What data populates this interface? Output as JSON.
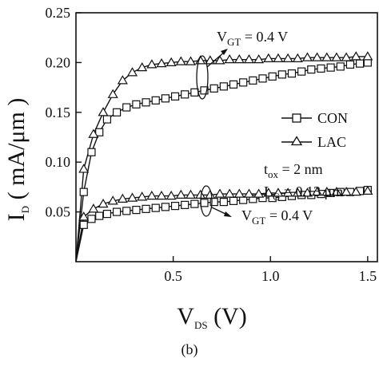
{
  "chart_data": {
    "type": "line",
    "caption": "(b)",
    "x_label": {
      "main": "V",
      "sub": "DS",
      "suffix": " (V)"
    },
    "y_label": {
      "main": "I",
      "sub": "D",
      "suffix": " ( mA/μm )"
    },
    "x_range": [
      0,
      1.55
    ],
    "y_range": [
      0,
      0.25
    ],
    "x_ticks": [
      0.5,
      1.0,
      1.5
    ],
    "x_tick_labels": [
      "0.5",
      "1.0",
      "1.5"
    ],
    "y_ticks": [
      0.05,
      0.1,
      0.15,
      0.2,
      0.25
    ],
    "y_tick_labels": [
      "0.05",
      "0.10",
      "0.15",
      "0.20",
      "0.25"
    ],
    "grid": false,
    "legend_position": "right",
    "series": [
      {
        "name": "CON",
        "marker": "square",
        "curves": [
          {
            "x": [
              0,
              0.04,
              0.08,
              0.12,
              0.16,
              0.21,
              0.26,
              0.31,
              0.36,
              0.41,
              0.46,
              0.51,
              0.56,
              0.61,
              0.66,
              0.71,
              0.76,
              0.81,
              0.86,
              0.91,
              0.96,
              1.01,
              1.06,
              1.11,
              1.16,
              1.21,
              1.26,
              1.31,
              1.36,
              1.41,
              1.46,
              1.5
            ],
            "y": [
              0,
              0.07,
              0.11,
              0.13,
              0.143,
              0.15,
              0.155,
              0.158,
              0.16,
              0.162,
              0.164,
              0.166,
              0.168,
              0.17,
              0.172,
              0.174,
              0.176,
              0.178,
              0.18,
              0.182,
              0.184,
              0.186,
              0.188,
              0.189,
              0.191,
              0.193,
              0.194,
              0.195,
              0.196,
              0.198,
              0.199,
              0.2
            ]
          },
          {
            "x": [
              0,
              0.04,
              0.08,
              0.12,
              0.16,
              0.21,
              0.26,
              0.31,
              0.36,
              0.41,
              0.46,
              0.51,
              0.56,
              0.61,
              0.66,
              0.71,
              0.76,
              0.81,
              0.86,
              0.91,
              0.96,
              1.01,
              1.06,
              1.11,
              1.16,
              1.21,
              1.26,
              1.31,
              1.36,
              1.41,
              1.46,
              1.5
            ],
            "y": [
              0,
              0.037,
              0.043,
              0.046,
              0.048,
              0.05,
              0.051,
              0.052,
              0.053,
              0.054,
              0.055,
              0.056,
              0.057,
              0.058,
              0.059,
              0.06,
              0.06,
              0.061,
              0.062,
              0.063,
              0.064,
              0.064,
              0.065,
              0.066,
              0.067,
              0.067,
              0.068,
              0.069,
              0.07,
              0.07,
              0.071,
              0.072
            ]
          }
        ]
      },
      {
        "name": "LAC",
        "marker": "triangle",
        "curves": [
          {
            "x": [
              0,
              0.04,
              0.09,
              0.14,
              0.19,
              0.24,
              0.29,
              0.34,
              0.39,
              0.44,
              0.49,
              0.54,
              0.59,
              0.64,
              0.69,
              0.74,
              0.79,
              0.84,
              0.89,
              0.94,
              0.99,
              1.04,
              1.09,
              1.14,
              1.19,
              1.24,
              1.29,
              1.34,
              1.39,
              1.44,
              1.5
            ],
            "y": [
              0,
              0.093,
              0.128,
              0.15,
              0.168,
              0.182,
              0.19,
              0.195,
              0.198,
              0.199,
              0.2,
              0.201,
              0.201,
              0.202,
              0.202,
              0.202,
              0.203,
              0.203,
              0.203,
              0.203,
              0.204,
              0.204,
              0.204,
              0.204,
              0.205,
              0.205,
              0.205,
              0.205,
              0.205,
              0.206,
              0.206
            ]
          },
          {
            "x": [
              0,
              0.04,
              0.09,
              0.14,
              0.19,
              0.24,
              0.29,
              0.34,
              0.39,
              0.44,
              0.49,
              0.54,
              0.59,
              0.64,
              0.69,
              0.74,
              0.79,
              0.84,
              0.89,
              0.94,
              0.99,
              1.04,
              1.09,
              1.14,
              1.19,
              1.24,
              1.29,
              1.34,
              1.39,
              1.44,
              1.5
            ],
            "y": [
              0,
              0.045,
              0.053,
              0.058,
              0.061,
              0.063,
              0.064,
              0.065,
              0.066,
              0.066,
              0.066,
              0.067,
              0.067,
              0.067,
              0.067,
              0.068,
              0.068,
              0.068,
              0.068,
              0.068,
              0.069,
              0.069,
              0.069,
              0.069,
              0.069,
              0.07,
              0.07,
              0.07,
              0.07,
              0.07,
              0.071
            ]
          }
        ]
      }
    ],
    "annotations": {
      "vgt_upper": {
        "main": "V",
        "sub": "GT",
        "rest": " = 0.4 V"
      },
      "vgt_lower": {
        "main": "V",
        "sub": "GT",
        "rest": " = 0.4 V"
      },
      "tox": {
        "main": "t",
        "sub": "ox",
        "rest": " = 2 nm"
      },
      "lg": {
        "main": "L",
        "sub": "G",
        "rest": " = 0.13 μm"
      }
    }
  }
}
